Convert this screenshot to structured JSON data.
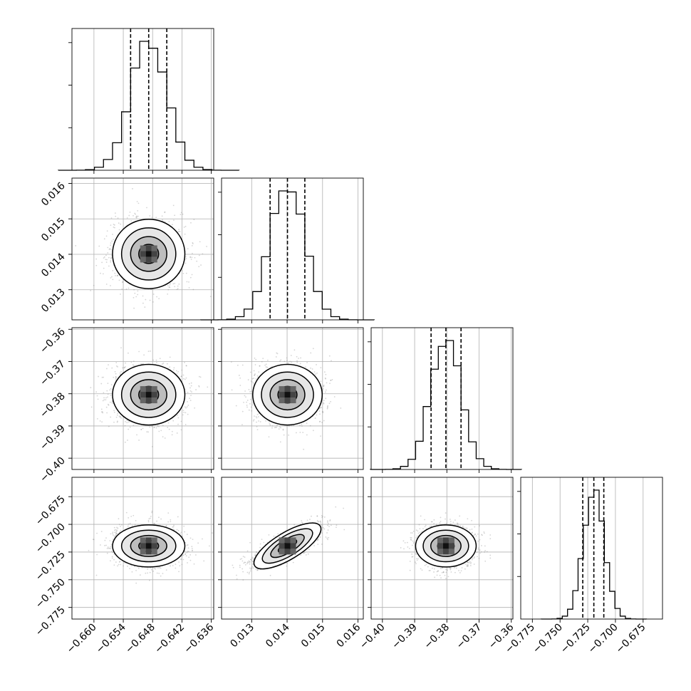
{
  "chart_data": {
    "type": "corner",
    "parameters": [
      {
        "ticks": [
          -0.66,
          -0.654,
          -0.648,
          -0.642,
          -0.636
        ],
        "tick_labels": [
          "−0.660",
          "−0.654",
          "−0.648",
          "−0.642",
          "−0.636"
        ],
        "range": [
          -0.6645,
          -0.6355
        ],
        "quantiles": [
          -0.6525,
          -0.6488,
          -0.6451
        ],
        "median": -0.6488,
        "sigma": 0.0037,
        "hist_max_value": 0.0,
        "hist_yticks": []
      },
      {
        "ticks": [
          0.013,
          0.014,
          0.015,
          0.016
        ],
        "tick_labels": [
          "0.013",
          "0.014",
          "0.015",
          "0.016"
        ],
        "range": [
          0.01215,
          0.01615
        ],
        "quantiles": [
          0.01352,
          0.01401,
          0.0145
        ],
        "median": 0.01401,
        "sigma": 0.00049
      },
      {
        "ticks": [
          -0.4,
          -0.39,
          -0.38,
          -0.37,
          -0.36
        ],
        "tick_labels": [
          "−0.40",
          "−0.39",
          "−0.38",
          "−0.37",
          "−0.36"
        ],
        "range": [
          -0.4035,
          -0.3595
        ],
        "quantiles": [
          -0.3849,
          -0.3803,
          -0.3756
        ],
        "median": -0.3803,
        "sigma": 0.0047
      },
      {
        "ticks": [
          -0.775,
          -0.75,
          -0.725,
          -0.7,
          -0.675
        ],
        "tick_labels": [
          "−0.775",
          "−0.750",
          "−0.725",
          "−0.700",
          "−0.675"
        ],
        "range": [
          -0.7855,
          -0.6575
        ],
        "quantiles": [
          -0.7295,
          -0.7195,
          -0.7105
        ],
        "median": -0.7195,
        "sigma": 0.0095
      }
    ],
    "correlations": {
      "1-0": 0.0,
      "2-0": 0.0,
      "2-1": 0.0,
      "3-0": 0.0,
      "3-1": 0.78,
      "3-2": 0.0
    },
    "contour_levels": [
      0.5,
      1.0,
      1.5,
      2.0
    ],
    "grid": true,
    "colors": {
      "line": "#000000",
      "grid": "#b0b0b0",
      "points": "#888888",
      "density": "#000000"
    }
  }
}
